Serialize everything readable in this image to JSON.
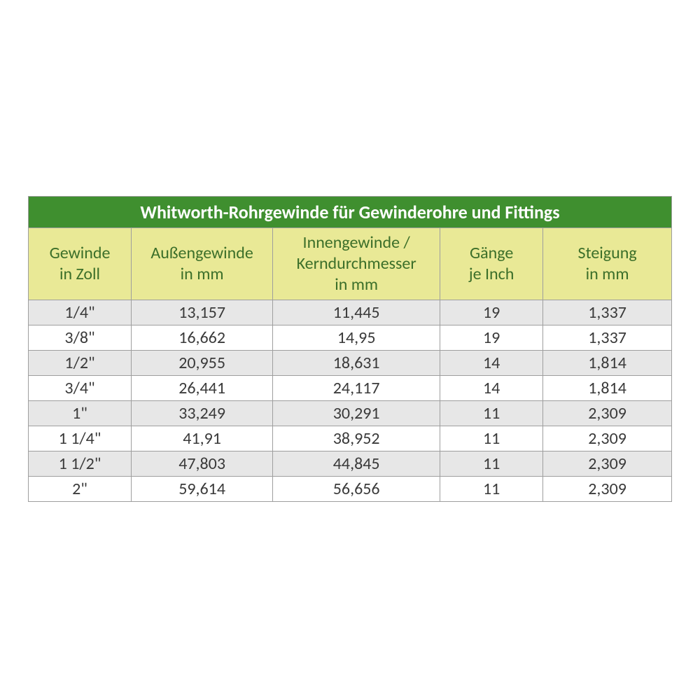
{
  "table": {
    "title": "Whitworth-Rohrgewinde für Gewinderohre und Fittings",
    "title_bg": "#3f8f2f",
    "title_fg": "#ffffff",
    "title_fontsize": 26,
    "title_fontweight": "bold",
    "header_bg": "#e9e996",
    "header_fg": "#3c6f2a",
    "header_fontsize": 24,
    "cell_fontsize": 24,
    "cell_fg": "#3a3a3a",
    "row_odd_bg": "#e7e7e7",
    "row_even_bg": "#ffffff",
    "border_color": "#9e9e9e",
    "col_widths_pct": [
      16,
      22,
      26,
      16,
      20
    ],
    "columns": [
      {
        "line1": "Gewinde",
        "line2": "in Zoll"
      },
      {
        "line1": "Außengewinde",
        "line2": "in mm"
      },
      {
        "line1": "Innengewinde /",
        "line2": "Kerndurchmesser",
        "line3": "in mm"
      },
      {
        "line1": "Gänge",
        "line2": "je Inch"
      },
      {
        "line1": "Steigung",
        "line2": "in mm"
      }
    ],
    "rows": [
      [
        "1/4\"",
        "13,157",
        "11,445",
        "19",
        "1,337"
      ],
      [
        "3/8\"",
        "16,662",
        "14,95",
        "19",
        "1,337"
      ],
      [
        "1/2\"",
        "20,955",
        "18,631",
        "14",
        "1,814"
      ],
      [
        "3/4\"",
        "26,441",
        "24,117",
        "14",
        "1,814"
      ],
      [
        "1\"",
        "33,249",
        "30,291",
        "11",
        "2,309"
      ],
      [
        "1 1/4\"",
        "41,91",
        "38,952",
        "11",
        "2,309"
      ],
      [
        "1 1/2\"",
        "47,803",
        "44,845",
        "11",
        "2,309"
      ],
      [
        "2\"",
        "59,614",
        "56,656",
        "11",
        "2,309"
      ]
    ]
  }
}
